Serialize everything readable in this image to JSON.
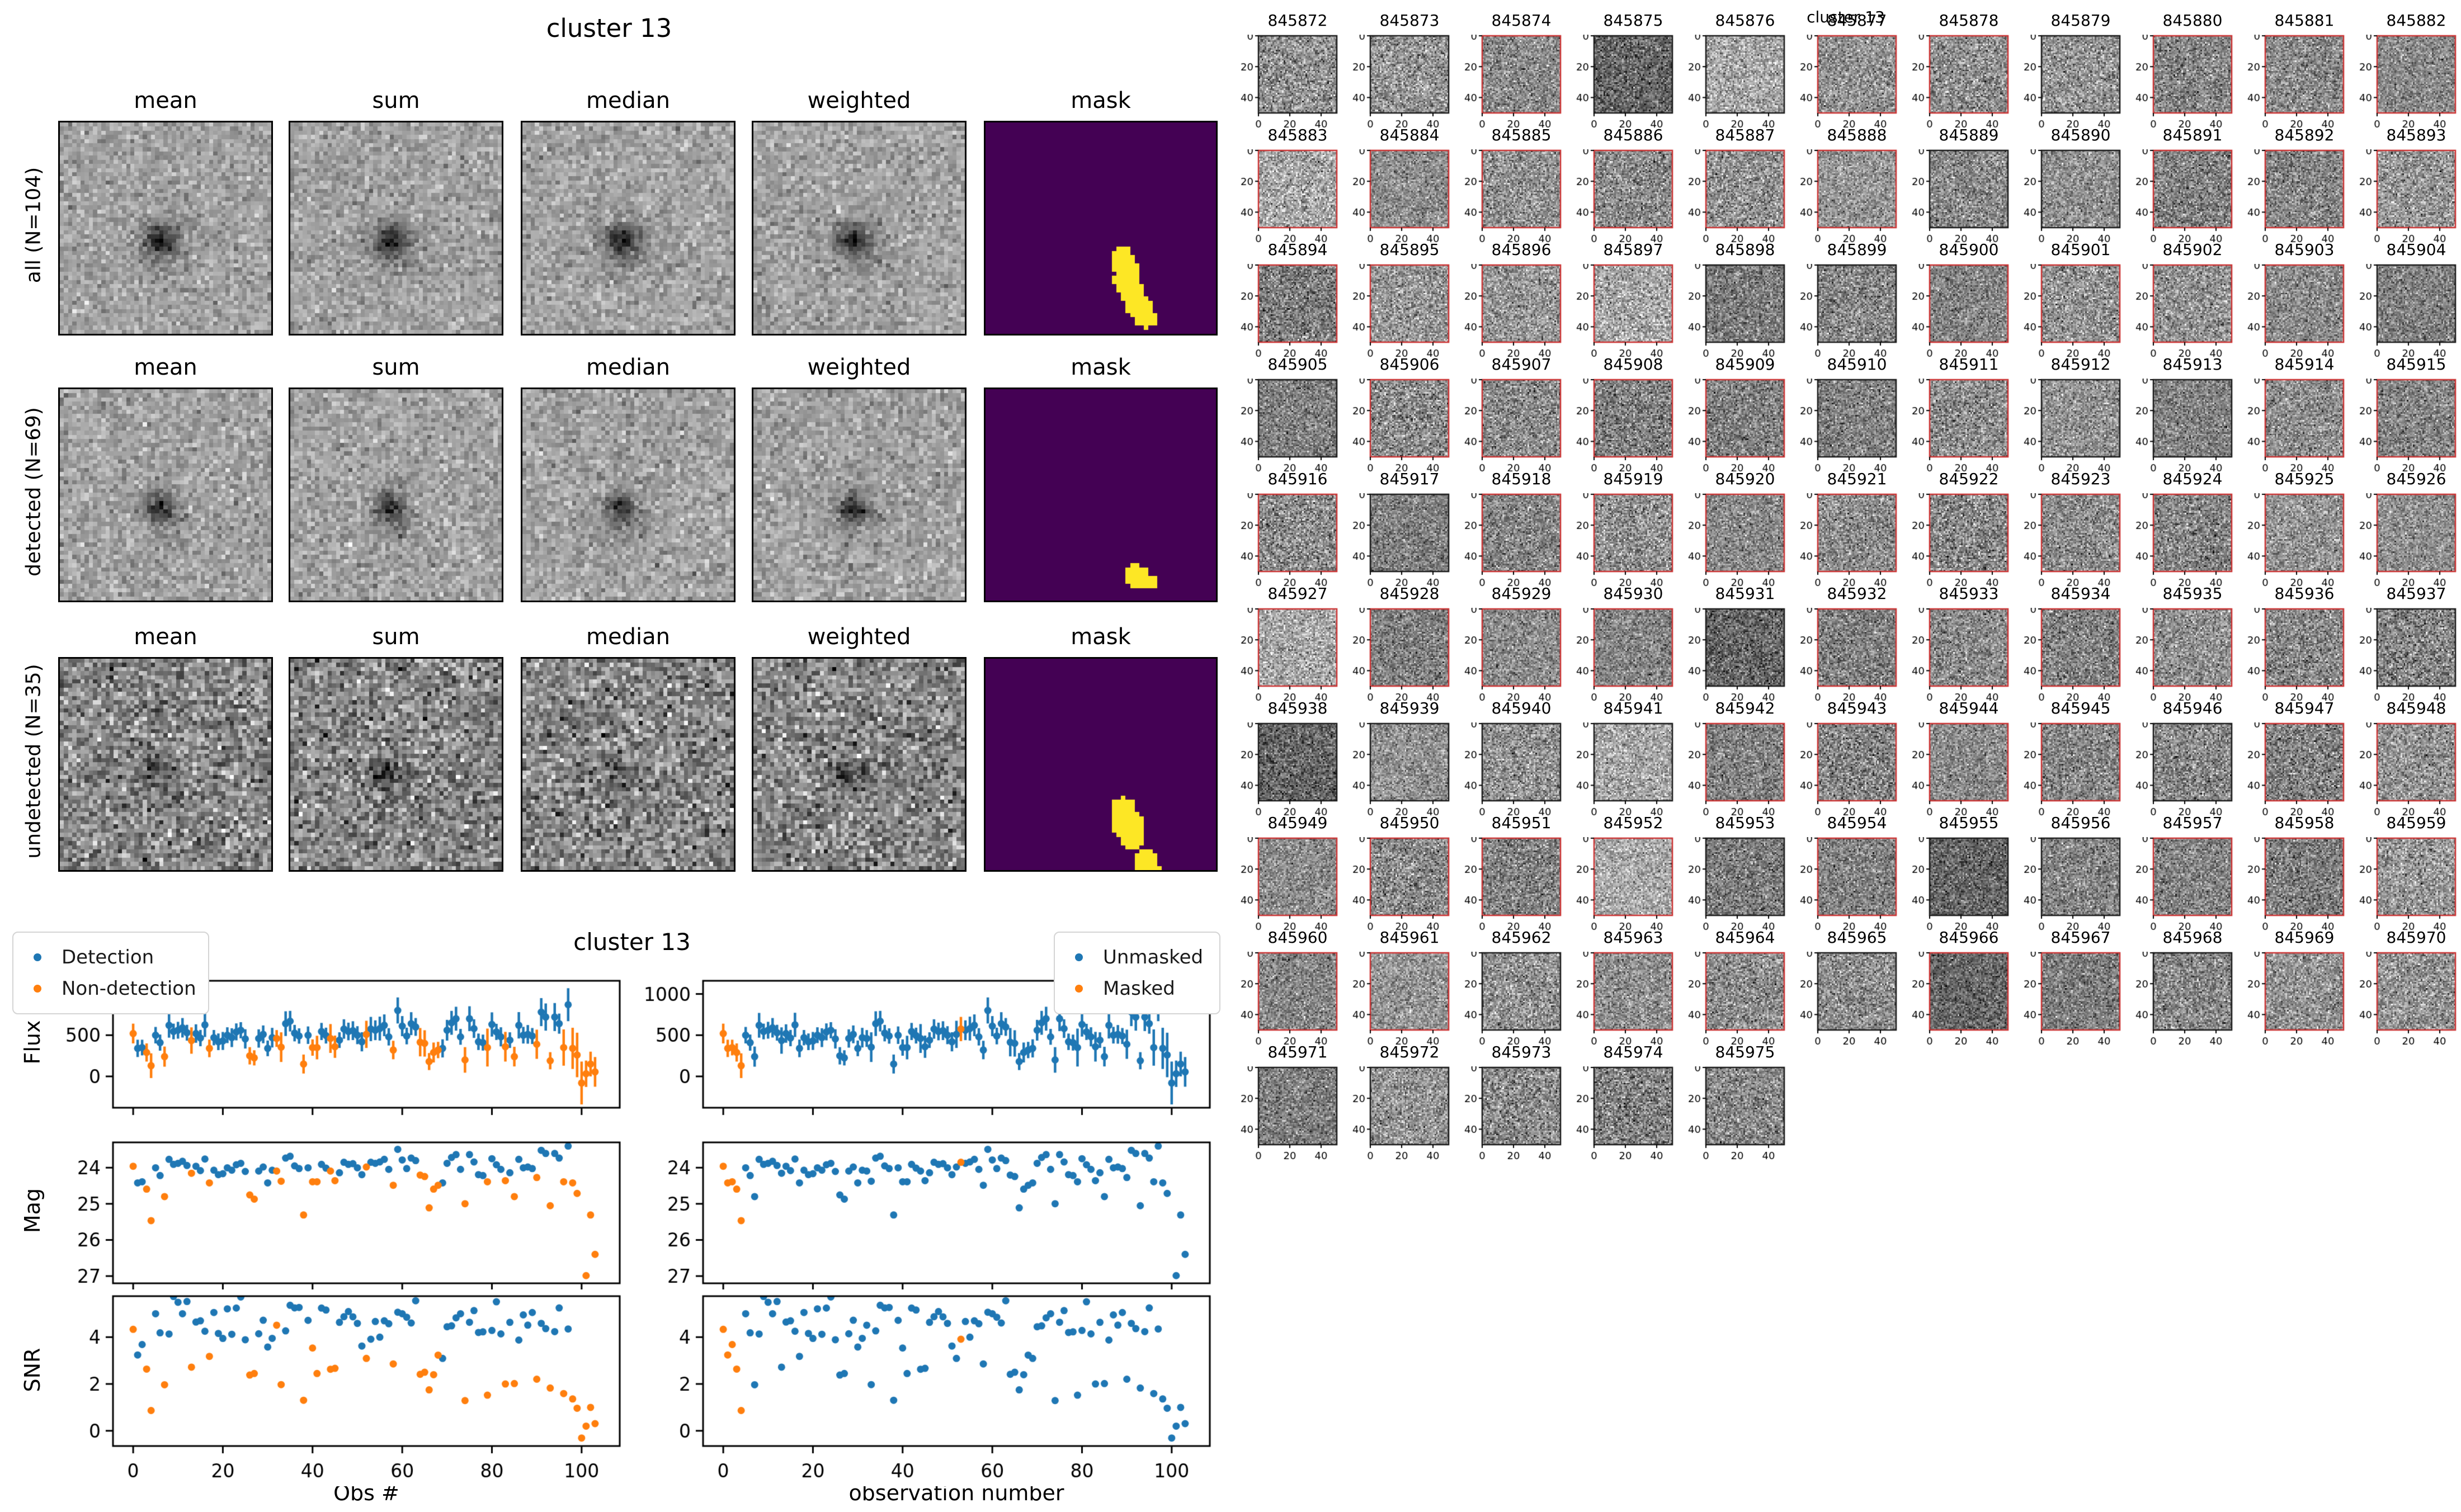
{
  "figure_left": {
    "title": "cluster 13",
    "columns": [
      "mean",
      "sum",
      "median",
      "weighted",
      "mask"
    ],
    "rows": [
      {
        "label": "all (N=104)",
        "mask_blobs": [
          [
            0.585,
            0.625,
            0.04
          ],
          [
            0.6,
            0.68,
            0.05
          ],
          [
            0.605,
            0.74,
            0.055
          ],
          [
            0.625,
            0.8,
            0.05
          ],
          [
            0.655,
            0.86,
            0.05
          ],
          [
            0.685,
            0.915,
            0.045
          ]
        ]
      },
      {
        "label": "detected (N=69)",
        "mask_blobs": [
          [
            0.645,
            0.875,
            0.05
          ],
          [
            0.695,
            0.9,
            0.035
          ]
        ]
      },
      {
        "label": "undetected (N=35)",
        "mask_blobs": [
          [
            0.59,
            0.7,
            0.05
          ],
          [
            0.605,
            0.77,
            0.065
          ],
          [
            0.63,
            0.84,
            0.05
          ],
          [
            0.685,
            0.95,
            0.05
          ],
          [
            0.725,
            1.0,
            0.04
          ]
        ]
      }
    ],
    "mask_colors": {
      "background": "#440154",
      "foreground": "#fde725"
    }
  },
  "figure_thumbs": {
    "title": "cluster 13",
    "xticks": [
      0,
      20,
      40
    ],
    "yticks": [
      0,
      20,
      40
    ],
    "red_border_color": "#cc3333",
    "black_border_color": "#1a1a1a",
    "ids": [
      845872,
      845873,
      845874,
      845875,
      845876,
      845877,
      845878,
      845879,
      845880,
      845881,
      845882,
      845883,
      845884,
      845885,
      845886,
      845887,
      845888,
      845889,
      845890,
      845891,
      845892,
      845893,
      845894,
      845895,
      845896,
      845897,
      845898,
      845899,
      845900,
      845901,
      845902,
      845903,
      845904,
      845905,
      845906,
      845907,
      845908,
      845909,
      845910,
      845911,
      845912,
      845913,
      845914,
      845915,
      845916,
      845917,
      845918,
      845919,
      845920,
      845921,
      845922,
      845923,
      845924,
      845925,
      845926,
      845927,
      845928,
      845929,
      845930,
      845931,
      845932,
      845933,
      845934,
      845935,
      845936,
      845937,
      845938,
      845939,
      845940,
      845941,
      845942,
      845943,
      845944,
      845945,
      845946,
      845947,
      845948,
      845949,
      845950,
      845951,
      845952,
      845953,
      845954,
      845955,
      845956,
      845957,
      845958,
      845959,
      845960,
      845961,
      845962,
      845963,
      845964,
      845965,
      845966,
      845967,
      845968,
      845969,
      845970,
      845971,
      845972,
      845973,
      845974,
      845975
    ],
    "red_flags": [
      0,
      0,
      1,
      0,
      0,
      1,
      1,
      0,
      1,
      1,
      1,
      1,
      1,
      1,
      1,
      1,
      1,
      0,
      0,
      1,
      1,
      1,
      1,
      1,
      1,
      1,
      0,
      0,
      1,
      1,
      1,
      1,
      0,
      0,
      1,
      1,
      1,
      1,
      0,
      1,
      0,
      0,
      1,
      1,
      1,
      0,
      1,
      1,
      1,
      1,
      1,
      1,
      1,
      1,
      1,
      1,
      1,
      1,
      1,
      0,
      1,
      1,
      1,
      1,
      1,
      0,
      0,
      0,
      0,
      0,
      1,
      1,
      1,
      1,
      0,
      1,
      1,
      1,
      1,
      1,
      1,
      0,
      1,
      0,
      0,
      1,
      1,
      1,
      1,
      1,
      0,
      1,
      1,
      0,
      1,
      1,
      0,
      1,
      1,
      0,
      0,
      0,
      0,
      0
    ],
    "dark_ids": [
      845875,
      845931,
      845938,
      845955,
      845966
    ],
    "light_ids": [
      845876,
      845883,
      845897,
      845927,
      845941,
      845952
    ]
  },
  "chart_data": {
    "type": "scatter",
    "title": "cluster 13",
    "colors": {
      "blue": "#1f77b4",
      "orange": "#ff7f0e"
    },
    "xlim": [
      -4.5,
      108.5
    ],
    "xticks": [
      0,
      20,
      40,
      60,
      80,
      100
    ],
    "panels": [
      {
        "ylabel": "Flux",
        "yticks": [
          0,
          500,
          1000
        ],
        "ylim": [
          -380,
          1160
        ],
        "mode": "flux",
        "errorbars": true
      },
      {
        "ylabel": "Mag",
        "yticks": [
          24,
          25,
          26,
          27
        ],
        "ylim": [
          27.2,
          23.3
        ],
        "mode": "mag",
        "inverted": true
      },
      {
        "ylabel": "SNR",
        "yticks": [
          0,
          2,
          4
        ],
        "ylim": [
          -0.65,
          5.75
        ],
        "mode": "snr"
      }
    ],
    "columns": [
      {
        "xlabel": "Obs #",
        "color_by": "detection"
      },
      {
        "xlabel": "observation number",
        "color_by": "masked"
      }
    ],
    "legend_left": [
      {
        "label": "Detection",
        "color": "#1f77b4"
      },
      {
        "label": "Non-detection",
        "color": "#ff7f0e"
      }
    ],
    "legend_right": [
      {
        "label": "Unmasked",
        "color": "#1f77b4"
      },
      {
        "label": "Masked",
        "color": "#ff7f0e"
      }
    ],
    "n_obs": 104,
    "flux": [
      520,
      340,
      350,
      290,
      130,
      500,
      410,
      240,
      620,
      545,
      560,
      590,
      530,
      435,
      520,
      465,
      625,
      340,
      470,
      420,
      430,
      500,
      470,
      540,
      560,
      455,
      250,
      225,
      460,
      510,
      340,
      470,
      460,
      355,
      640,
      670,
      525,
      490,
      150,
      500,
      350,
      350,
      545,
      495,
      460,
      360,
      440,
      575,
      545,
      555,
      500,
      420,
      510,
      575,
      560,
      580,
      620,
      480,
      320,
      800,
      610,
      490,
      640,
      600,
      415,
      400,
      180,
      290,
      320,
      340,
      560,
      650,
      700,
      480,
      200,
      700,
      580,
      420,
      410,
      350,
      630,
      540,
      480,
      360,
      440,
      240,
      620,
      500,
      510,
      490,
      390,
      780,
      720,
      190,
      720,
      640,
      350,
      870,
      340,
      260,
      -80,
      32,
      150,
      55
    ],
    "flux_err": [
      120,
      105,
      95,
      110,
      150,
      100,
      98,
      122,
      150,
      95,
      102,
      118,
      96,
      160,
      112,
      99,
      147,
      107,
      93,
      101,
      109,
      96,
      114,
      103,
      98,
      117,
      105,
      92,
      111,
      108,
      95,
      119,
      102,
      180,
      150,
      125,
      100,
      93,
      115,
      106,
      99,
      143,
      104,
      96,
      175,
      135,
      95,
      118,
      107,
      114,
      109,
      116,
      165,
      147,
      120,
      145,
      132,
      105,
      112,
      158,
      122,
      101,
      139,
      108,
      172,
      160,
      103,
      121,
      99,
      110,
      126,
      145,
      145,
      96,
      155,
      151,
      113,
      100,
      97,
      230,
      147,
      98,
      116,
      180,
      95,
      119,
      160,
      101,
      113,
      97,
      177,
      170,
      165,
      104,
      170,
      122,
      220,
      200,
      250,
      270,
      260,
      160,
      150,
      180
    ],
    "non_detected_idx": [
      0,
      3,
      4,
      7,
      13,
      17,
      26,
      27,
      32,
      33,
      38,
      40,
      41,
      44,
      45,
      52,
      58,
      64,
      65,
      66,
      67,
      68,
      74,
      79,
      83,
      85,
      90,
      93,
      96,
      98,
      99,
      100,
      101,
      102,
      103
    ],
    "masked_idx": [
      0,
      1,
      2,
      3,
      4,
      53
    ],
    "mag_zeropoint": 30.75
  }
}
